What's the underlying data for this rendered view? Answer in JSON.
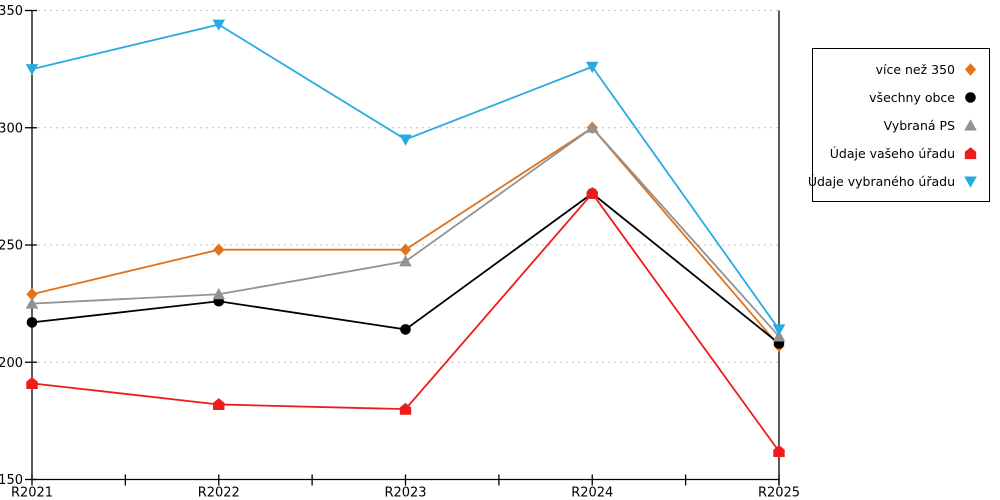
{
  "chart_data": {
    "type": "line",
    "title": "",
    "xlabel": "",
    "ylabel": "",
    "categories": [
      "R2021",
      "R2022",
      "R2023",
      "R2024",
      "R2025"
    ],
    "series": [
      {
        "name": "více než 350",
        "color": "#E0731C",
        "marker": "diamond",
        "values": [
          229,
          248,
          248,
          300,
          207
        ]
      },
      {
        "name": "všechny obce",
        "color": "#000000",
        "marker": "circle",
        "values": [
          217,
          226,
          214,
          272,
          208
        ]
      },
      {
        "name": "Vybraná PS",
        "color": "#929292",
        "marker": "triangle-up",
        "values": [
          225,
          229,
          243,
          300,
          211
        ]
      },
      {
        "name": "Údaje vašeho úřadu",
        "color": "#EE1C1C",
        "marker": "pentagon",
        "values": [
          191,
          182,
          180,
          272,
          162
        ]
      },
      {
        "name": "Údaje vybraného úřadu",
        "color": "#29ABE2",
        "marker": "triangle-down",
        "values": [
          325,
          344,
          295,
          326,
          214
        ]
      }
    ],
    "ylim": [
      150,
      350
    ],
    "yticks": [
      150,
      200,
      250,
      300,
      350
    ],
    "grid": "horizontal-dotted",
    "grid_color": "#c4c4c4",
    "axis_color": "#000000",
    "background": "#ffffff",
    "legend_position": "right"
  }
}
